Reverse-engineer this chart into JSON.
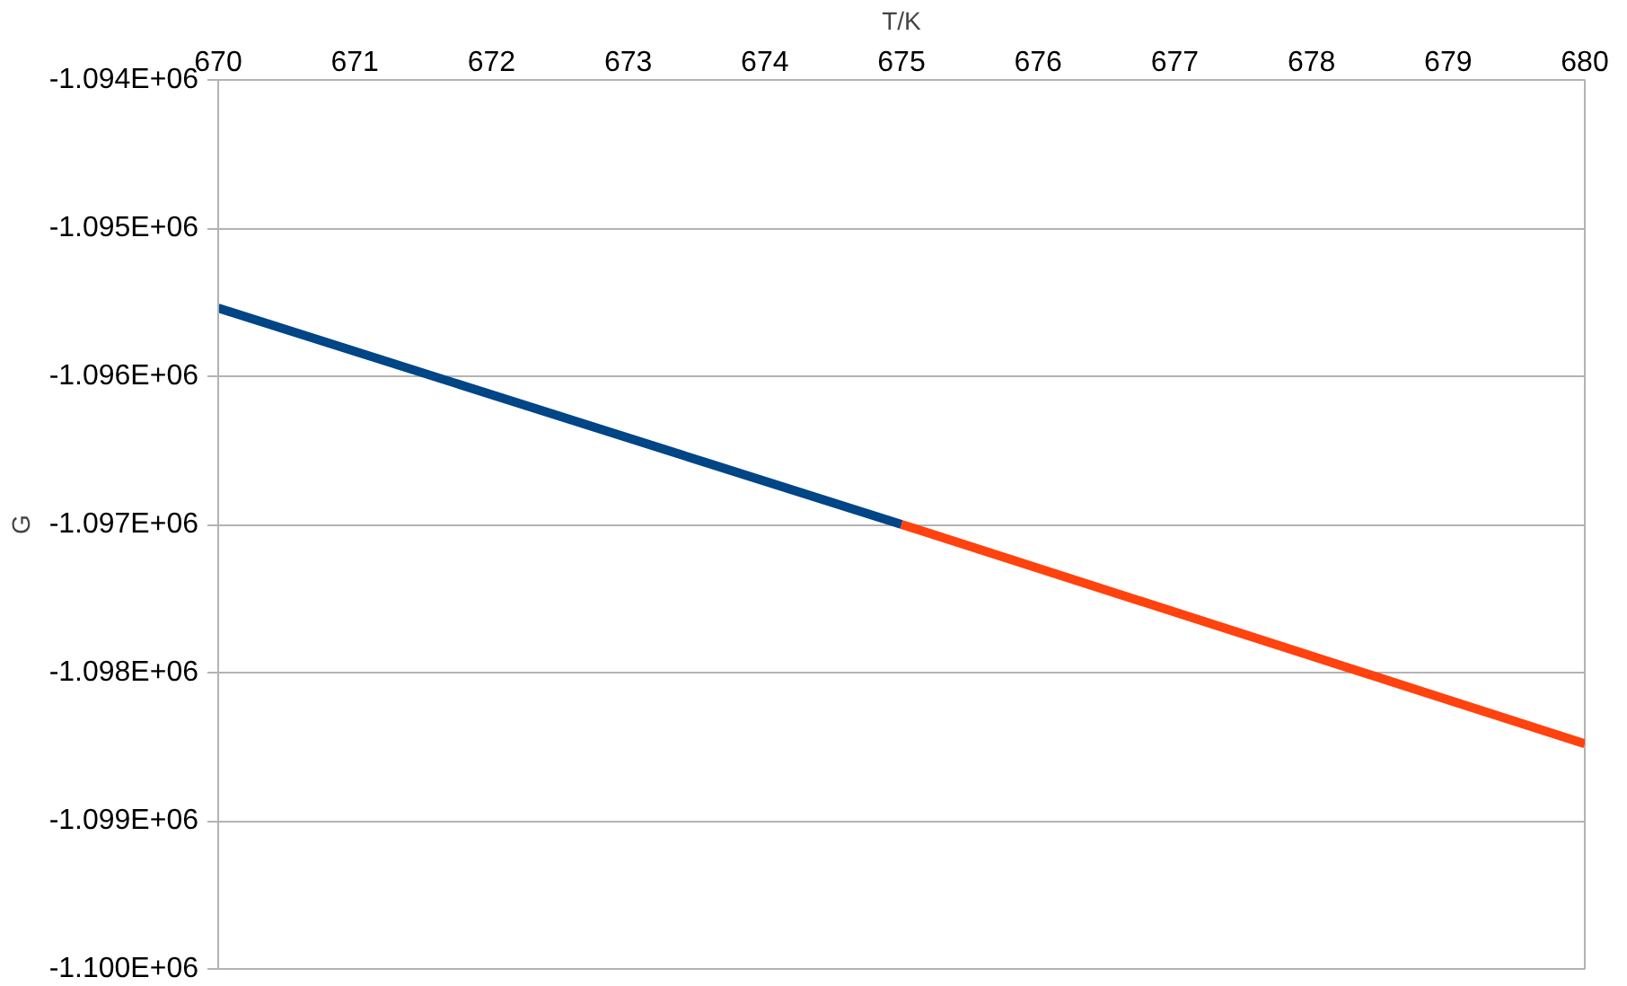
{
  "chart_data": {
    "type": "line",
    "xlabel": "T/K",
    "ylabel": "G",
    "series": [
      {
        "color": "#004586",
        "x": [
          670,
          675
        ],
        "values": [
          -1095540,
          -1097000
        ]
      },
      {
        "color": "#ff420e",
        "x": [
          675,
          680
        ],
        "values": [
          -1097000,
          -1098480
        ]
      }
    ],
    "xlim": [
      670,
      680
    ],
    "xticks": [
      670,
      671,
      672,
      673,
      674,
      675,
      676,
      677,
      678,
      679,
      680
    ],
    "ylim": [
      -1100000,
      -1094000
    ],
    "yticks": [
      {
        "value": -1100000,
        "label": "-1.100E+06"
      },
      {
        "value": -1099000,
        "label": "-1.099E+06"
      },
      {
        "value": -1098000,
        "label": "-1.098E+06"
      },
      {
        "value": -1097000,
        "label": "-1.097E+06"
      },
      {
        "value": -1096000,
        "label": "-1.096E+06"
      },
      {
        "value": -1095000,
        "label": "-1.095E+06"
      },
      {
        "value": -1094000,
        "label": "-1.094E+06"
      }
    ],
    "grid": "y",
    "line_style": "solid"
  }
}
